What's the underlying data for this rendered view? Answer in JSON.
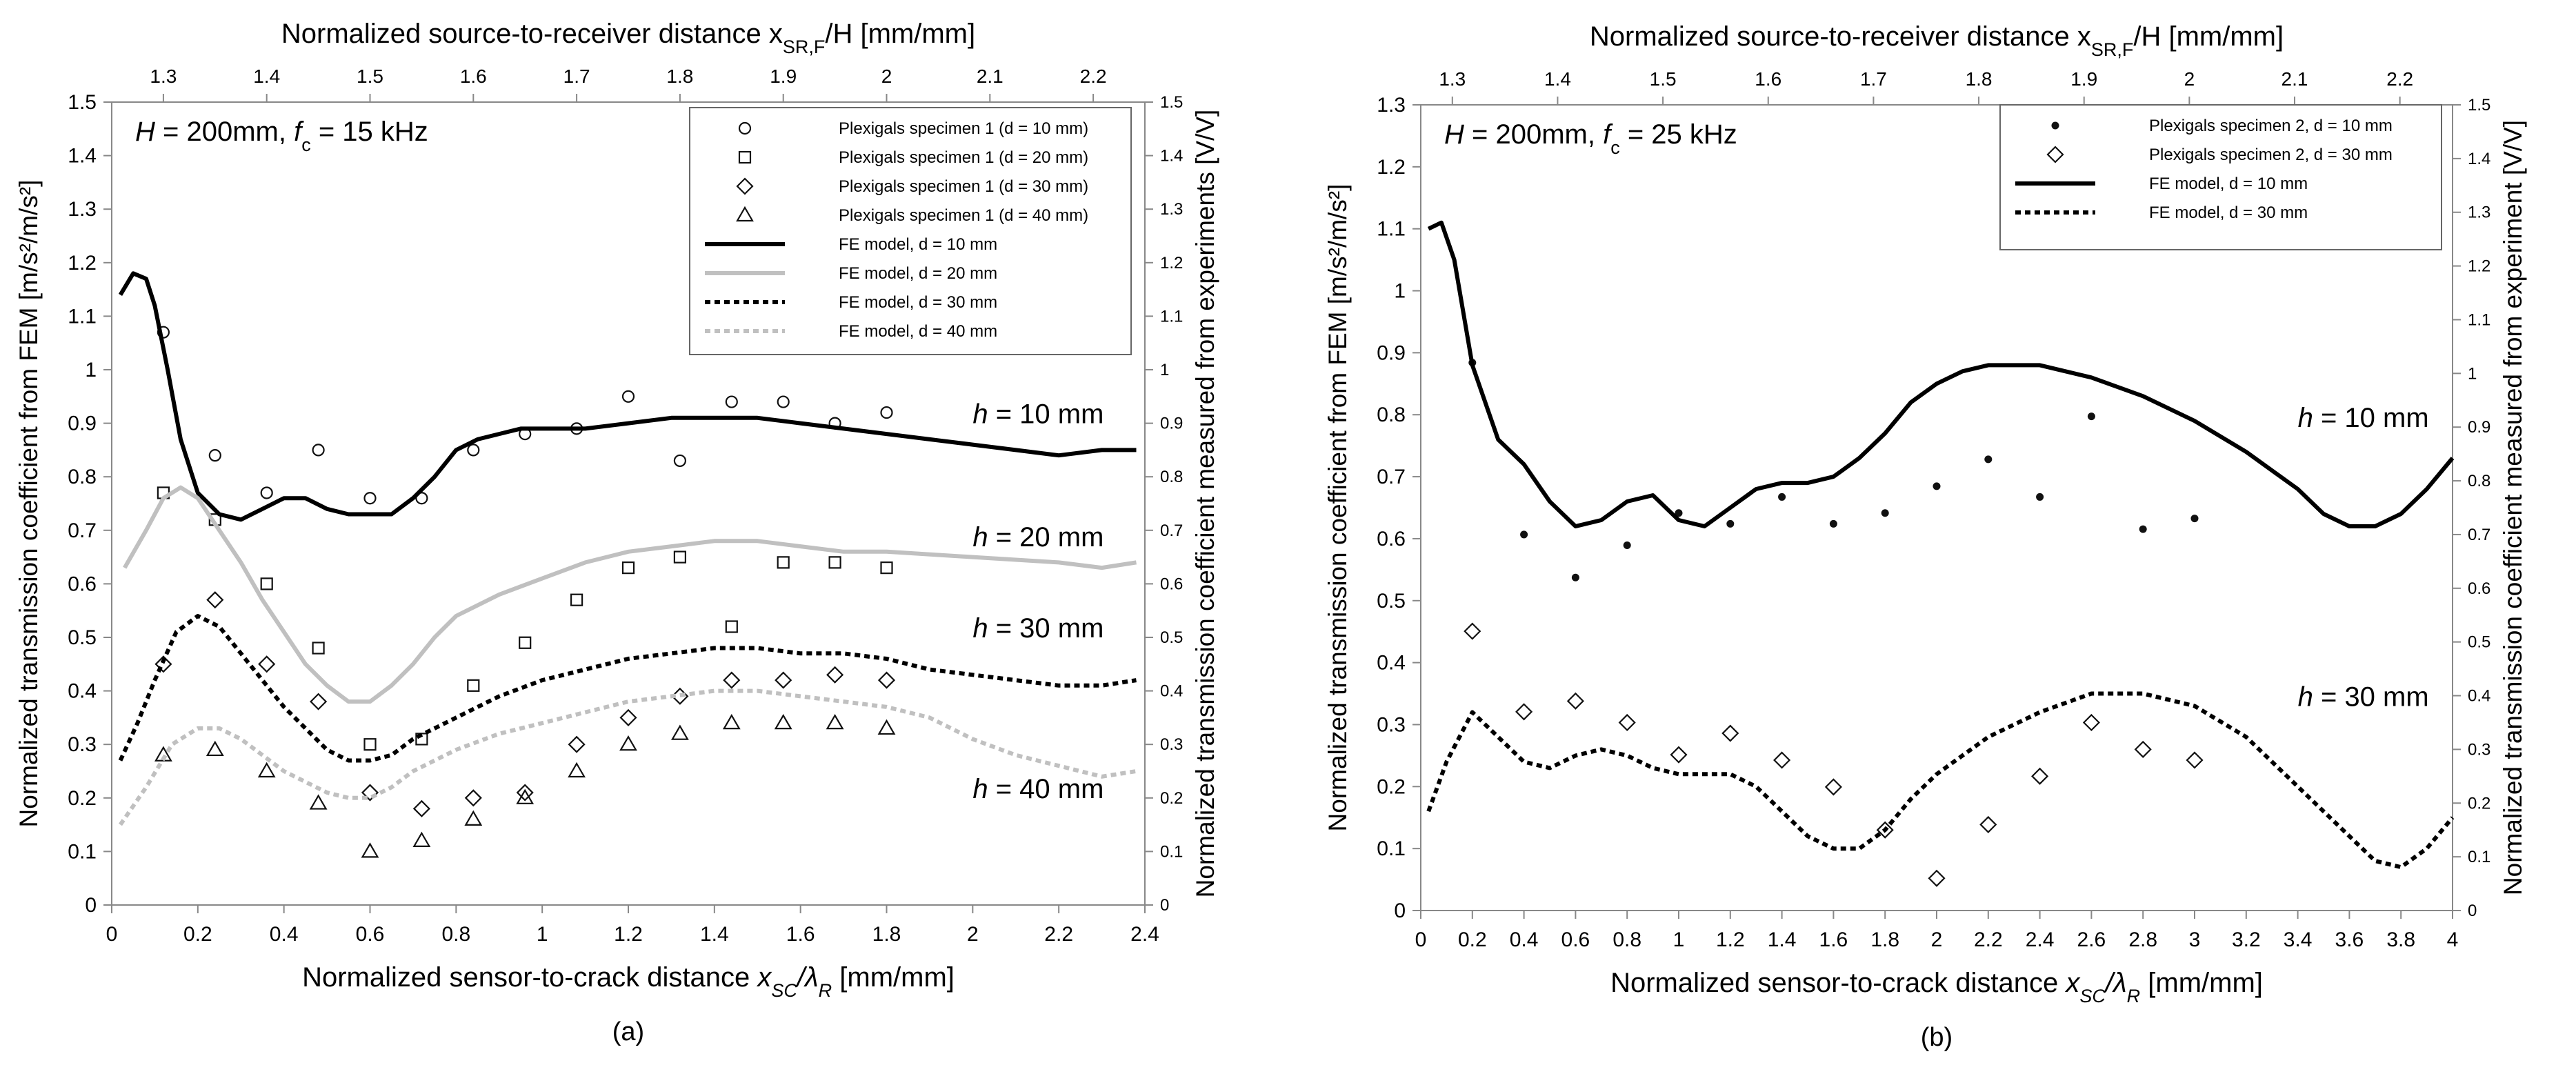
{
  "chart_data": [
    {
      "type": "line",
      "panel_label": "(a)",
      "annotation": {
        "pre": "H",
        "value": " = 200mm, ",
        "fc": "f",
        "fc_sub": "c",
        "fc_value": " = 15 kHz"
      },
      "xlabel_bottom": {
        "text": "Normalized sensor-to-crack distance ",
        "sym": "x",
        "sub": "SC",
        "sep": "/λ",
        "sub2": "R",
        "unit": " [mm/mm]"
      },
      "xlabel_top": {
        "text": "Normalized source-to-receiver distance x",
        "sub": "SR,F",
        "rest": "/H [mm/mm]"
      },
      "ylabel_left": "Normalized transmission coefficient from FEM [m/s²/m/s²]",
      "ylabel_right": "Normalized transmission coefficient measured from experiments [V/V]",
      "xlim": [
        0,
        2.4
      ],
      "ylim": [
        0,
        1.5
      ],
      "xticks": [
        "0",
        "0.2",
        "0.4",
        "0.6",
        "0.8",
        "1",
        "1.2",
        "1.4",
        "1.6",
        "1.8",
        "2",
        "2.2",
        "2.4"
      ],
      "yticks_left": [
        "0",
        "0.1",
        "0.2",
        "0.3",
        "0.4",
        "0.5",
        "0.6",
        "0.7",
        "0.8",
        "0.9",
        "1",
        "1.1",
        "1.2",
        "1.3",
        "1.4",
        "1.5"
      ],
      "yticks_right": [
        "0",
        "0.1",
        "0.2",
        "0.3",
        "0.4",
        "0.5",
        "0.6",
        "0.7",
        "0.8",
        "0.9",
        "1",
        "1.1",
        "1.2",
        "1.3",
        "1.4",
        "1.5"
      ],
      "top_axis": {
        "min": 1.25,
        "max": 2.25,
        "ticks": [
          "1.3",
          "1.4",
          "1.5",
          "1.6",
          "1.7",
          "1.8",
          "1.9",
          "2",
          "2.1",
          "2.2"
        ]
      },
      "curve_labels": [
        {
          "text": "h",
          "rest": " = 10 mm",
          "x": 2.0,
          "y": 0.9
        },
        {
          "text": "h",
          "rest": " = 20 mm",
          "x": 2.0,
          "y": 0.67
        },
        {
          "text": "h",
          "rest": " = 30 mm",
          "x": 2.0,
          "y": 0.5
        },
        {
          "text": "h",
          "rest": " = 40 mm",
          "x": 2.0,
          "y": 0.2
        }
      ],
      "series": [
        {
          "name": "Plexigals specimen 1 (d = 10 mm)",
          "kind": "scatter",
          "marker": "circle",
          "x": [
            0.12,
            0.24,
            0.36,
            0.48,
            0.6,
            0.72,
            0.84,
            0.96,
            1.08,
            1.2,
            1.32,
            1.44,
            1.56,
            1.68,
            1.8
          ],
          "y": [
            1.07,
            0.84,
            0.77,
            0.85,
            0.76,
            0.76,
            0.85,
            0.88,
            0.89,
            0.95,
            0.83,
            0.94,
            0.94,
            0.9,
            0.92
          ]
        },
        {
          "name": "Plexigals specimen 1 (d = 20 mm)",
          "kind": "scatter",
          "marker": "square",
          "x": [
            0.12,
            0.24,
            0.36,
            0.48,
            0.6,
            0.72,
            0.84,
            0.96,
            1.08,
            1.2,
            1.32,
            1.44,
            1.56,
            1.68,
            1.8
          ],
          "y": [
            0.77,
            0.72,
            0.6,
            0.48,
            0.3,
            0.31,
            0.41,
            0.49,
            0.57,
            0.63,
            0.65,
            0.52,
            0.64,
            0.64,
            0.63
          ]
        },
        {
          "name": "Plexigals specimen 1 (d = 30 mm)",
          "kind": "scatter",
          "marker": "diamond",
          "x": [
            0.12,
            0.24,
            0.36,
            0.48,
            0.6,
            0.72,
            0.84,
            0.96,
            1.08,
            1.2,
            1.32,
            1.44,
            1.56,
            1.68,
            1.8
          ],
          "y": [
            0.45,
            0.57,
            0.45,
            0.38,
            0.21,
            0.18,
            0.2,
            0.21,
            0.3,
            0.35,
            0.39,
            0.42,
            0.42,
            0.43,
            0.42
          ]
        },
        {
          "name": "Plexigals specimen 1 (d = 40 mm)",
          "kind": "scatter",
          "marker": "triangle",
          "x": [
            0.12,
            0.24,
            0.36,
            0.48,
            0.6,
            0.72,
            0.84,
            0.96,
            1.08,
            1.2,
            1.32,
            1.44,
            1.56,
            1.68,
            1.8
          ],
          "y": [
            0.28,
            0.29,
            0.25,
            0.19,
            0.1,
            0.12,
            0.16,
            0.2,
            0.25,
            0.3,
            0.32,
            0.34,
            0.34,
            0.34,
            0.33
          ]
        },
        {
          "name": "FE model, d = 10 mm",
          "kind": "line",
          "color": "#000000",
          "dash": "solid",
          "x": [
            0.02,
            0.05,
            0.08,
            0.1,
            0.13,
            0.16,
            0.2,
            0.25,
            0.3,
            0.35,
            0.4,
            0.45,
            0.5,
            0.55,
            0.6,
            0.65,
            0.7,
            0.75,
            0.8,
            0.85,
            0.9,
            0.95,
            1.0,
            1.1,
            1.2,
            1.3,
            1.4,
            1.5,
            1.6,
            1.7,
            1.8,
            1.9,
            2.0,
            2.1,
            2.2,
            2.3,
            2.38
          ],
          "y": [
            1.14,
            1.18,
            1.17,
            1.12,
            1.0,
            0.87,
            0.77,
            0.73,
            0.72,
            0.74,
            0.76,
            0.76,
            0.74,
            0.73,
            0.73,
            0.73,
            0.76,
            0.8,
            0.85,
            0.87,
            0.88,
            0.89,
            0.89,
            0.89,
            0.9,
            0.91,
            0.91,
            0.91,
            0.9,
            0.89,
            0.88,
            0.87,
            0.86,
            0.85,
            0.84,
            0.85,
            0.85
          ]
        },
        {
          "name": "FE model, d = 20 mm",
          "kind": "line",
          "color": "#c0c0c0",
          "dash": "solid",
          "x": [
            0.03,
            0.08,
            0.12,
            0.16,
            0.2,
            0.25,
            0.3,
            0.35,
            0.4,
            0.45,
            0.5,
            0.55,
            0.6,
            0.65,
            0.7,
            0.75,
            0.8,
            0.9,
            1.0,
            1.1,
            1.2,
            1.3,
            1.4,
            1.5,
            1.6,
            1.7,
            1.8,
            2.0,
            2.2,
            2.3,
            2.38
          ],
          "y": [
            0.63,
            0.7,
            0.76,
            0.78,
            0.76,
            0.7,
            0.64,
            0.57,
            0.51,
            0.45,
            0.41,
            0.38,
            0.38,
            0.41,
            0.45,
            0.5,
            0.54,
            0.58,
            0.61,
            0.64,
            0.66,
            0.67,
            0.68,
            0.68,
            0.67,
            0.66,
            0.66,
            0.65,
            0.64,
            0.63,
            0.64
          ]
        },
        {
          "name": "FE model, d = 30 mm",
          "kind": "line",
          "color": "#000000",
          "dash": "dot",
          "x": [
            0.02,
            0.06,
            0.1,
            0.15,
            0.2,
            0.25,
            0.3,
            0.35,
            0.4,
            0.45,
            0.5,
            0.55,
            0.6,
            0.65,
            0.7,
            0.8,
            0.9,
            1.0,
            1.1,
            1.2,
            1.3,
            1.4,
            1.5,
            1.6,
            1.7,
            1.8,
            1.9,
            2.0,
            2.1,
            2.2,
            2.3,
            2.38
          ],
          "y": [
            0.27,
            0.34,
            0.42,
            0.51,
            0.54,
            0.52,
            0.47,
            0.42,
            0.37,
            0.33,
            0.29,
            0.27,
            0.27,
            0.28,
            0.31,
            0.35,
            0.39,
            0.42,
            0.44,
            0.46,
            0.47,
            0.48,
            0.48,
            0.47,
            0.47,
            0.46,
            0.44,
            0.43,
            0.42,
            0.41,
            0.41,
            0.42
          ]
        },
        {
          "name": "FE model, d = 40 mm",
          "kind": "line",
          "color": "#c0c0c0",
          "dash": "dot",
          "x": [
            0.02,
            0.08,
            0.14,
            0.2,
            0.25,
            0.3,
            0.35,
            0.4,
            0.45,
            0.5,
            0.55,
            0.6,
            0.65,
            0.7,
            0.8,
            0.9,
            1.0,
            1.1,
            1.2,
            1.3,
            1.4,
            1.5,
            1.6,
            1.7,
            1.8,
            1.9,
            2.0,
            2.1,
            2.2,
            2.3,
            2.38
          ],
          "y": [
            0.15,
            0.22,
            0.3,
            0.33,
            0.33,
            0.31,
            0.28,
            0.25,
            0.23,
            0.21,
            0.2,
            0.2,
            0.22,
            0.25,
            0.29,
            0.32,
            0.34,
            0.36,
            0.38,
            0.39,
            0.4,
            0.4,
            0.39,
            0.38,
            0.37,
            0.35,
            0.31,
            0.28,
            0.26,
            0.24,
            0.25
          ]
        }
      ]
    },
    {
      "type": "line",
      "panel_label": "(b)",
      "annotation": {
        "pre": "H",
        "value": " = 200mm, ",
        "fc": "f",
        "fc_sub": "c",
        "fc_value": " = 25 kHz"
      },
      "xlabel_bottom": {
        "text": "Normalized sensor-to-crack distance ",
        "sym": "x",
        "sub": "SC",
        "sep": "/λ",
        "sub2": "R",
        "unit": " [mm/mm]"
      },
      "xlabel_top": {
        "text": "Normalized source-to-receiver distance x",
        "sub": "SR,F",
        "rest": "/H [mm/mm]"
      },
      "ylabel_left": "Normalized transmission coefficient from FEM [m/s²/m/s²]",
      "ylabel_right": "Normalized transmission coefficient measured from experiment [V/V]",
      "xlim": [
        0,
        4
      ],
      "ylim": [
        0,
        1.3
      ],
      "xticks": [
        "0",
        "0.2",
        "0.4",
        "0.6",
        "0.8",
        "1",
        "1.2",
        "1.4",
        "1.6",
        "1.8",
        "2",
        "2.2",
        "2.4",
        "2.6",
        "2.8",
        "3",
        "3.2",
        "3.4",
        "3.6",
        "3.8",
        "4"
      ],
      "yticks_left": [
        "0",
        "0.1",
        "0.2",
        "0.3",
        "0.4",
        "0.5",
        "0.6",
        "0.7",
        "0.8",
        "0.9",
        "1",
        "1.1",
        "1.2",
        "1.3"
      ],
      "right_axis": {
        "min": 0,
        "max": 1.5,
        "ticks": [
          "0",
          "0.1",
          "0.2",
          "0.3",
          "0.4",
          "0.5",
          "0.6",
          "0.7",
          "0.8",
          "0.9",
          "1",
          "1.1",
          "1.2",
          "1.3",
          "1.4",
          "1.5"
        ]
      },
      "top_axis": {
        "min": 1.27,
        "max": 2.25,
        "ticks": [
          "1.3",
          "1.4",
          "1.5",
          "1.6",
          "1.7",
          "1.8",
          "1.9",
          "2",
          "2.1",
          "2.2"
        ]
      },
      "curve_labels": [
        {
          "text": "h",
          "rest": " = 10 mm",
          "x": 3.4,
          "y": 0.78
        },
        {
          "text": "h",
          "rest": " = 30 mm",
          "x": 3.4,
          "y": 0.33
        }
      ],
      "series": [
        {
          "name": "Plexigals specimen 2, d = 10 mm",
          "kind": "scatter",
          "marker": "dot",
          "axis": "right",
          "x": [
            0.2,
            0.4,
            0.6,
            0.8,
            1.0,
            1.2,
            1.4,
            1.6,
            1.8,
            2.0,
            2.2,
            2.4,
            2.6,
            2.8,
            3.0
          ],
          "y": [
            1.02,
            0.7,
            0.62,
            0.68,
            0.74,
            0.72,
            0.77,
            0.72,
            0.74,
            0.79,
            0.84,
            0.77,
            0.92,
            0.71,
            0.73
          ]
        },
        {
          "name": "Plexigals specimen 2, d = 30 mm",
          "kind": "scatter",
          "marker": "diamond",
          "axis": "right",
          "x": [
            0.2,
            0.4,
            0.6,
            0.8,
            1.0,
            1.2,
            1.4,
            1.6,
            1.8,
            2.0,
            2.2,
            2.4,
            2.6,
            2.8,
            3.0
          ],
          "y": [
            0.52,
            0.37,
            0.39,
            0.35,
            0.29,
            0.33,
            0.28,
            0.23,
            0.15,
            0.06,
            0.16,
            0.25,
            0.35,
            0.3,
            0.28
          ]
        },
        {
          "name": "FE model, d = 10 mm",
          "kind": "line",
          "color": "#000000",
          "dash": "solid",
          "x": [
            0.03,
            0.08,
            0.13,
            0.2,
            0.3,
            0.4,
            0.5,
            0.6,
            0.7,
            0.8,
            0.9,
            1.0,
            1.1,
            1.2,
            1.3,
            1.4,
            1.5,
            1.6,
            1.7,
            1.8,
            1.9,
            2.0,
            2.1,
            2.2,
            2.3,
            2.4,
            2.6,
            2.8,
            3.0,
            3.2,
            3.4,
            3.5,
            3.6,
            3.7,
            3.8,
            3.9,
            4.0
          ],
          "y": [
            1.1,
            1.11,
            1.05,
            0.88,
            0.76,
            0.72,
            0.66,
            0.62,
            0.63,
            0.66,
            0.67,
            0.63,
            0.62,
            0.65,
            0.68,
            0.69,
            0.69,
            0.7,
            0.73,
            0.77,
            0.82,
            0.85,
            0.87,
            0.88,
            0.88,
            0.88,
            0.86,
            0.83,
            0.79,
            0.74,
            0.68,
            0.64,
            0.62,
            0.62,
            0.64,
            0.68,
            0.73
          ]
        },
        {
          "name": "FE model, d = 30 mm",
          "kind": "line",
          "color": "#000000",
          "dash": "dot",
          "x": [
            0.03,
            0.1,
            0.2,
            0.3,
            0.4,
            0.5,
            0.6,
            0.7,
            0.8,
            0.9,
            1.0,
            1.1,
            1.2,
            1.3,
            1.4,
            1.5,
            1.6,
            1.7,
            1.8,
            1.9,
            2.0,
            2.2,
            2.4,
            2.6,
            2.8,
            3.0,
            3.2,
            3.4,
            3.6,
            3.7,
            3.8,
            3.9,
            4.0
          ],
          "y": [
            0.16,
            0.24,
            0.32,
            0.28,
            0.24,
            0.23,
            0.25,
            0.26,
            0.25,
            0.23,
            0.22,
            0.22,
            0.22,
            0.2,
            0.16,
            0.12,
            0.1,
            0.1,
            0.13,
            0.18,
            0.22,
            0.28,
            0.32,
            0.35,
            0.35,
            0.33,
            0.28,
            0.2,
            0.12,
            0.08,
            0.07,
            0.1,
            0.15
          ]
        }
      ]
    }
  ]
}
